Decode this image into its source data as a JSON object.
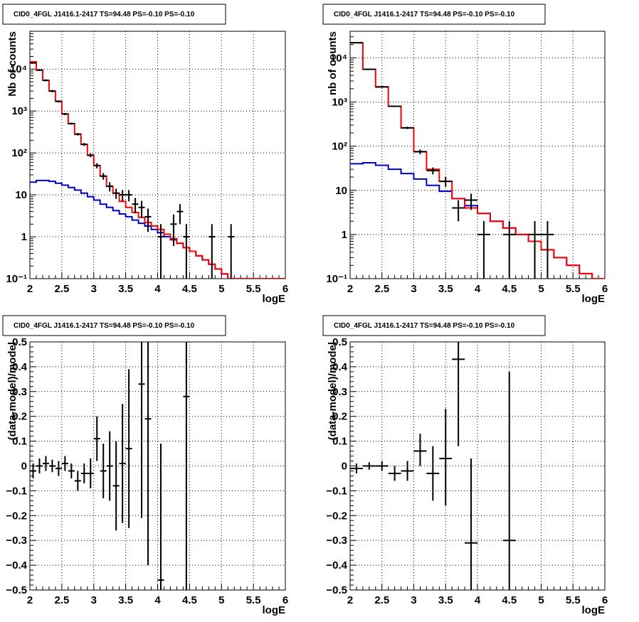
{
  "chart_data": [
    {
      "type": "line",
      "title": "CID0_4FGL J1416.1-2417 TS=94.48 PS=-0.10 PS=-0.10",
      "xlabel": "logE",
      "ylabel": "Nb of counts",
      "xlim": [
        2,
        6
      ],
      "ylim": [
        0.1,
        80000
      ],
      "yscale": "log",
      "grid": true,
      "xticks": [
        2,
        2.5,
        3,
        3.5,
        4,
        4.5,
        5,
        5.5,
        6
      ],
      "xtick_labels": [
        "2",
        "2.5",
        "3",
        "3.5",
        "4",
        "4.5",
        "5",
        "5.5",
        "6"
      ],
      "yticks": [
        0.1,
        1,
        10,
        100,
        1000,
        10000
      ],
      "ytick_labels": [
        "10⁻¹",
        "1",
        "10",
        "10²",
        "10³",
        "10⁴"
      ],
      "colors": {
        "total_model": "#ff0000",
        "background_model": "#0000cc",
        "data": "#000000"
      },
      "bin_edges": [
        2.0,
        2.1,
        2.2,
        2.3,
        2.4,
        2.5,
        2.6,
        2.7,
        2.8,
        2.9,
        3.0,
        3.1,
        3.2,
        3.3,
        3.4,
        3.5,
        3.6,
        3.7,
        3.8,
        3.9,
        4.0,
        4.1,
        4.2,
        4.3,
        4.4,
        4.5,
        4.6,
        4.7,
        4.8,
        4.9,
        5.0,
        5.1,
        5.2,
        5.3,
        5.4,
        5.5,
        5.6,
        5.7,
        5.8,
        5.9,
        6.0
      ],
      "series": [
        {
          "key": "total",
          "values": [
            15000,
            9500,
            5400,
            3000,
            1700,
            850,
            500,
            280,
            160,
            88,
            50,
            28,
            16,
            11,
            7,
            5,
            3.8,
            2.9,
            2.2,
            1.8,
            1.5,
            1.15,
            0.9,
            0.7,
            0.55,
            0.45,
            0.35,
            0.28,
            0.22,
            0.17,
            0.13,
            0.1,
            0.1,
            0.1,
            0.1,
            0.1,
            0.1,
            0.1,
            0.1,
            0.1
          ]
        },
        {
          "key": "background",
          "values": [
            20,
            22,
            22,
            21,
            19,
            17,
            15,
            13,
            11,
            9,
            7.5,
            6,
            5,
            4.2,
            3.5,
            3,
            2.5,
            2.1,
            1.8,
            1.5,
            1.25,
            1.0,
            0.85,
            0.7,
            0.55,
            0.45,
            0.35,
            0.28,
            0.22,
            0.17,
            0.13,
            0.1,
            0.1,
            0.1,
            0.1,
            0.1,
            0.1,
            0.1,
            0.1,
            0.1
          ]
        }
      ],
      "points": [
        {
          "x": 2.05,
          "y": 14000,
          "ylo": 13500,
          "yhi": 14500
        },
        {
          "x": 2.15,
          "y": 9500,
          "ylo": 9000,
          "yhi": 10000
        },
        {
          "x": 2.25,
          "y": 5400,
          "ylo": 5100,
          "yhi": 5700
        },
        {
          "x": 2.35,
          "y": 3000,
          "ylo": 2800,
          "yhi": 3200
        },
        {
          "x": 2.45,
          "y": 1700,
          "ylo": 1600,
          "yhi": 1800
        },
        {
          "x": 2.55,
          "y": 850,
          "ylo": 800,
          "yhi": 900
        },
        {
          "x": 2.65,
          "y": 500,
          "ylo": 470,
          "yhi": 530
        },
        {
          "x": 2.75,
          "y": 280,
          "ylo": 260,
          "yhi": 300
        },
        {
          "x": 2.85,
          "y": 160,
          "ylo": 147,
          "yhi": 173
        },
        {
          "x": 2.95,
          "y": 88,
          "ylo": 79,
          "yhi": 97
        },
        {
          "x": 3.05,
          "y": 50,
          "ylo": 43,
          "yhi": 57
        },
        {
          "x": 3.15,
          "y": 28,
          "ylo": 23,
          "yhi": 33
        },
        {
          "x": 3.25,
          "y": 16,
          "ylo": 12,
          "yhi": 20
        },
        {
          "x": 3.35,
          "y": 11,
          "ylo": 8,
          "yhi": 14
        },
        {
          "x": 3.45,
          "y": 10,
          "ylo": 7,
          "yhi": 13
        },
        {
          "x": 3.55,
          "y": 10,
          "ylo": 7,
          "yhi": 13
        },
        {
          "x": 3.65,
          "y": 6,
          "ylo": 3.6,
          "yhi": 8.4
        },
        {
          "x": 3.75,
          "y": 5,
          "ylo": 2.8,
          "yhi": 7.2
        },
        {
          "x": 3.85,
          "y": 3,
          "ylo": 1.3,
          "yhi": 4.7
        },
        {
          "x": 4.05,
          "y": 1,
          "ylo": 0.1,
          "yhi": 2.0
        },
        {
          "x": 4.25,
          "y": 2,
          "ylo": 0.6,
          "yhi": 3.4
        },
        {
          "x": 4.35,
          "y": 4,
          "ylo": 2.0,
          "yhi": 6.0
        },
        {
          "x": 4.45,
          "y": 1,
          "ylo": 0.1,
          "yhi": 2.0
        },
        {
          "x": 4.85,
          "y": 1,
          "ylo": 0.1,
          "yhi": 2.0
        },
        {
          "x": 5.15,
          "y": 1,
          "ylo": 0.1,
          "yhi": 2.0
        }
      ]
    },
    {
      "type": "line",
      "title": "CID0_4FGL J1416.1-2417 TS=94.48 PS=-0.10 PS=-0.10",
      "xlabel": "logE",
      "ylabel": "nb of counts",
      "xlim": [
        2,
        6
      ],
      "ylim": [
        0.1,
        40000
      ],
      "yscale": "log",
      "grid": true,
      "xticks": [
        2,
        2.5,
        3,
        3.5,
        4,
        4.5,
        5,
        5.5,
        6
      ],
      "xtick_labels": [
        "2",
        "2.5",
        "3",
        "3.5",
        "4",
        "4.5",
        "5",
        "5.5",
        "6"
      ],
      "yticks": [
        0.1,
        1,
        10,
        100,
        1000,
        10000
      ],
      "ytick_labels": [
        "10⁻¹",
        "1",
        "10",
        "10²",
        "10³",
        "10⁴"
      ],
      "colors": {
        "total_model": "#ff0000",
        "background_model": "#0000cc",
        "data": "#000000"
      },
      "bin_edges": [
        2.0,
        2.2,
        2.4,
        2.6,
        2.8,
        3.0,
        3.2,
        3.4,
        3.6,
        3.8,
        4.0,
        4.2,
        4.4,
        4.6,
        4.8,
        5.0,
        5.2,
        5.4,
        5.6,
        5.8,
        6.0
      ],
      "series": [
        {
          "key": "total",
          "values": [
            22000,
            5500,
            2200,
            800,
            260,
            75,
            30,
            16,
            6.5,
            4.0,
            3.0,
            2.0,
            1.4,
            1.0,
            0.7,
            0.45,
            0.3,
            0.2,
            0.13,
            0.1
          ]
        },
        {
          "key": "background",
          "values": [
            40,
            42,
            37,
            30,
            24,
            18,
            13,
            9.5,
            6.5,
            4.5,
            3.0,
            2.0,
            1.4,
            1.0,
            0.7,
            0.45,
            0.3,
            0.2,
            0.13,
            0.1
          ]
        }
      ],
      "points": [
        {
          "x": 2.1,
          "y": 22000,
          "ylo": 21600,
          "yhi": 22400
        },
        {
          "x": 2.3,
          "y": 5500,
          "ylo": 5300,
          "yhi": 5700
        },
        {
          "x": 2.5,
          "y": 2200,
          "ylo": 2100,
          "yhi": 2300
        },
        {
          "x": 2.7,
          "y": 800,
          "ylo": 770,
          "yhi": 830
        },
        {
          "x": 2.9,
          "y": 260,
          "ylo": 244,
          "yhi": 276
        },
        {
          "x": 3.1,
          "y": 75,
          "ylo": 66,
          "yhi": 84
        },
        {
          "x": 3.3,
          "y": 28,
          "ylo": 23,
          "yhi": 33
        },
        {
          "x": 3.5,
          "y": 16,
          "ylo": 12,
          "yhi": 20
        },
        {
          "x": 3.7,
          "y": 4,
          "ylo": 2,
          "yhi": 6
        },
        {
          "x": 3.9,
          "y": 6,
          "ylo": 3.6,
          "yhi": 8.4
        },
        {
          "x": 4.1,
          "y": 1,
          "ylo": 0.1,
          "yhi": 2.0
        },
        {
          "x": 4.5,
          "y": 1,
          "ylo": 0.1,
          "yhi": 2.0
        },
        {
          "x": 4.9,
          "y": 1,
          "ylo": 0.1,
          "yhi": 2.0
        },
        {
          "x": 5.1,
          "y": 1,
          "ylo": 0.1,
          "yhi": 2.0
        }
      ]
    },
    {
      "type": "scatter",
      "title": "CID0_4FGL J1416.1-2417 TS=94.48 PS=-0.10 PS=-0.10",
      "xlabel": "logE",
      "ylabel": "(data-model)/model",
      "xlim": [
        2,
        6
      ],
      "ylim": [
        -0.5,
        0.5
      ],
      "yscale": "linear",
      "grid": true,
      "xticks": [
        2,
        2.5,
        3,
        3.5,
        4,
        4.5,
        5,
        5.5,
        6
      ],
      "xtick_labels": [
        "2",
        "2.5",
        "3",
        "3.5",
        "4",
        "4.5",
        "5",
        "5.5",
        "6"
      ],
      "yticks": [
        -0.5,
        -0.4,
        -0.3,
        -0.2,
        -0.1,
        0,
        0.1,
        0.2,
        0.3,
        0.4,
        0.5
      ],
      "ytick_labels": [
        "−0.5",
        "−0.4",
        "−0.3",
        "−0.2",
        "−0.1",
        "0",
        "0.1",
        "0.2",
        "0.3",
        "0.4",
        "0.5"
      ],
      "xhalf": 0.05,
      "points": [
        {
          "x": 2.05,
          "y": -0.02,
          "ylo": -0.05,
          "yhi": 0.01
        },
        {
          "x": 2.15,
          "y": 0.0,
          "ylo": -0.03,
          "yhi": 0.03
        },
        {
          "x": 2.25,
          "y": 0.01,
          "ylo": -0.02,
          "yhi": 0.04
        },
        {
          "x": 2.35,
          "y": 0.0,
          "ylo": -0.025,
          "yhi": 0.025
        },
        {
          "x": 2.45,
          "y": -0.01,
          "ylo": -0.04,
          "yhi": 0.02
        },
        {
          "x": 2.55,
          "y": 0.01,
          "ylo": -0.02,
          "yhi": 0.04
        },
        {
          "x": 2.65,
          "y": -0.02,
          "ylo": -0.05,
          "yhi": 0.01
        },
        {
          "x": 2.75,
          "y": -0.06,
          "ylo": -0.1,
          "yhi": -0.02
        },
        {
          "x": 2.85,
          "y": -0.03,
          "ylo": -0.07,
          "yhi": 0.01
        },
        {
          "x": 2.95,
          "y": -0.03,
          "ylo": -0.09,
          "yhi": 0.03
        },
        {
          "x": 3.05,
          "y": 0.11,
          "ylo": 0.02,
          "yhi": 0.2
        },
        {
          "x": 3.15,
          "y": -0.02,
          "ylo": -0.13,
          "yhi": 0.09
        },
        {
          "x": 3.25,
          "y": 0.0,
          "ylo": -0.14,
          "yhi": 0.14
        },
        {
          "x": 3.35,
          "y": -0.08,
          "ylo": -0.26,
          "yhi": 0.1
        },
        {
          "x": 3.45,
          "y": 0.01,
          "ylo": -0.23,
          "yhi": 0.25
        },
        {
          "x": 3.55,
          "y": 0.07,
          "ylo": -0.25,
          "yhi": 0.39
        },
        {
          "x": 3.75,
          "y": 0.33,
          "ylo": -0.21,
          "yhi": 0.5
        },
        {
          "x": 3.85,
          "y": 0.19,
          "ylo": -0.4,
          "yhi": 0.5
        },
        {
          "x": 4.05,
          "y": -0.46,
          "ylo": -0.5,
          "yhi": 0.09
        },
        {
          "x": 4.45,
          "y": 0.28,
          "ylo": -0.5,
          "yhi": 0.5
        }
      ]
    },
    {
      "type": "scatter",
      "title": "CID0_4FGL J1416.1-2417 TS=94.48 PS=-0.10 PS=-0.10",
      "xlabel": "logE",
      "ylabel": "(data-model)/model",
      "xlim": [
        2,
        6
      ],
      "ylim": [
        -0.5,
        0.5
      ],
      "yscale": "linear",
      "grid": true,
      "xticks": [
        2,
        2.5,
        3,
        3.5,
        4,
        4.5,
        5,
        5.5,
        6
      ],
      "xtick_labels": [
        "2",
        "2.5",
        "3",
        "3.5",
        "4",
        "4.5",
        "5",
        "5.5",
        "6"
      ],
      "yticks": [
        -0.5,
        -0.4,
        -0.3,
        -0.2,
        -0.1,
        0,
        0.1,
        0.2,
        0.3,
        0.4,
        0.5
      ],
      "ytick_labels": [
        "−0.5",
        "−0.4",
        "−0.3",
        "−0.2",
        "−0.1",
        "0",
        "0.1",
        "0.2",
        "0.3",
        "0.4",
        "0.5"
      ],
      "xhalf": 0.1,
      "points": [
        {
          "x": 2.1,
          "y": -0.01,
          "ylo": -0.03,
          "yhi": 0.01
        },
        {
          "x": 2.3,
          "y": 0.0,
          "ylo": -0.015,
          "yhi": 0.015
        },
        {
          "x": 2.5,
          "y": 0.0,
          "ylo": -0.02,
          "yhi": 0.02
        },
        {
          "x": 2.7,
          "y": -0.03,
          "ylo": -0.06,
          "yhi": 0.0
        },
        {
          "x": 2.9,
          "y": -0.02,
          "ylo": -0.06,
          "yhi": 0.02
        },
        {
          "x": 3.1,
          "y": 0.06,
          "ylo": 0.0,
          "yhi": 0.13
        },
        {
          "x": 3.3,
          "y": -0.03,
          "ylo": -0.14,
          "yhi": 0.08
        },
        {
          "x": 3.5,
          "y": 0.03,
          "ylo": -0.16,
          "yhi": 0.23
        },
        {
          "x": 3.7,
          "y": 0.43,
          "ylo": 0.08,
          "yhi": 0.5
        },
        {
          "x": 3.9,
          "y": -0.31,
          "ylo": -0.5,
          "yhi": 0.03
        },
        {
          "x": 4.5,
          "y": -0.3,
          "ylo": -0.5,
          "yhi": 0.38
        }
      ]
    }
  ]
}
